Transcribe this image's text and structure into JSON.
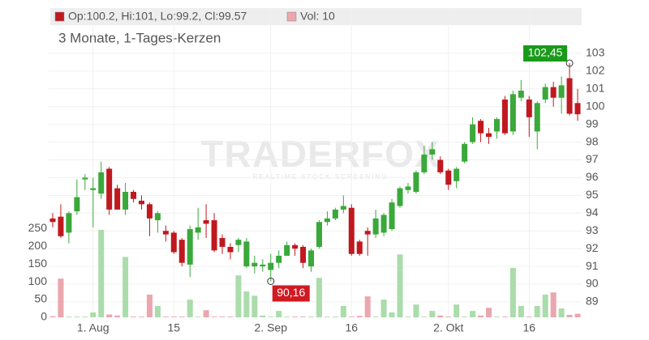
{
  "chart_data": {
    "type": "candlestick",
    "subtitle": "3 Monate, 1-Tages-Kerzen",
    "legend": {
      "ohlc": "Op:100.2, Hi:101, Lo:99.2, Cl:99.57",
      "volume": "Vol: 10"
    },
    "watermark": {
      "title": "TRADERFOX",
      "tagline": "REALTIME STOCK SCREENING"
    },
    "max_label": "102,45",
    "min_label": "90,16",
    "categories": [
      null,
      null,
      null,
      null,
      null,
      "1. Aug",
      null,
      null,
      null,
      null,
      null,
      null,
      null,
      null,
      null,
      "15",
      null,
      null,
      null,
      null,
      null,
      null,
      null,
      null,
      null,
      null,
      null,
      "2. Sep",
      null,
      null,
      null,
      null,
      null,
      null,
      null,
      null,
      null,
      "16",
      null,
      null,
      null,
      null,
      null,
      null,
      null,
      null,
      null,
      null,
      null,
      "2. Okt",
      null,
      null,
      null,
      null,
      null,
      null,
      null,
      null,
      null,
      "16",
      null,
      null,
      null,
      null,
      null,
      null
    ],
    "open": [
      93.7,
      93.8,
      92.9,
      94.1,
      95.9,
      95.3,
      95.1,
      96.5,
      95.4,
      94.2,
      95.2,
      94.7,
      94.5,
      93.6,
      93.0,
      92.9,
      92.5,
      91.1,
      92.9,
      93.6,
      93.6,
      92.6,
      92.1,
      92.2,
      91.0,
      91.0,
      91.0,
      90.8,
      91.2,
      91.6,
      92.2,
      92.1,
      91.0,
      92.1,
      93.5,
      93.7,
      94.2,
      94.3,
      92.4,
      93.0,
      92.8,
      92.9,
      93.1,
      94.4,
      95.3,
      95.2,
      96.3,
      97.3,
      97.0,
      96.4,
      95.8,
      96.9,
      98.0,
      99.2,
      98.5,
      98.6,
      100.4,
      98.6,
      100.5,
      100.4,
      98.6,
      100.4,
      101.1,
      100.5,
      101.6,
      100.2
    ],
    "high": [
      94.0,
      94.5,
      94.1,
      95.9,
      96.2,
      96.0,
      96.9,
      96.6,
      95.6,
      95.7,
      95.3,
      95.0,
      94.6,
      94.1,
      93.3,
      93.0,
      92.6,
      93.3,
      94.3,
      94.5,
      94.0,
      92.8,
      92.3,
      92.6,
      92.6,
      91.6,
      91.4,
      91.7,
      91.9,
      92.4,
      92.3,
      92.2,
      92.0,
      93.6,
      94.1,
      94.3,
      95.0,
      94.5,
      92.5,
      93.2,
      94.2,
      94.0,
      94.8,
      95.5,
      95.7,
      96.4,
      97.8,
      98.0,
      97.2,
      96.5,
      96.6,
      98.0,
      99.4,
      99.3,
      98.8,
      99.4,
      100.6,
      100.9,
      101.5,
      100.6,
      100.3,
      101.3,
      101.4,
      101.7,
      102.45,
      101
    ],
    "low": [
      93.2,
      92.6,
      92.3,
      93.9,
      95.3,
      93.2,
      94.8,
      93.9,
      94.2,
      93.9,
      94.6,
      94.2,
      92.7,
      92.9,
      92.4,
      91.7,
      91.0,
      90.4,
      92.5,
      92.6,
      91.8,
      91.7,
      91.4,
      91.8,
      90.9,
      90.6,
      90.7,
      90.16,
      90.9,
      91.6,
      91.6,
      90.9,
      90.7,
      92.0,
      93.3,
      93.6,
      94.0,
      91.6,
      91.6,
      91.6,
      92.6,
      92.7,
      93.0,
      94.3,
      95.1,
      95.1,
      96.2,
      97.0,
      96.2,
      95.3,
      95.4,
      96.8,
      97.9,
      98.0,
      97.9,
      98.2,
      98.4,
      98.4,
      100.3,
      98.3,
      97.6,
      100.2,
      100.0,
      99.6,
      99.5,
      99.2
    ],
    "close": [
      93.5,
      92.7,
      94.0,
      94.9,
      96.0,
      95.4,
      96.3,
      94.2,
      94.2,
      95.2,
      94.8,
      94.5,
      93.7,
      94.0,
      92.8,
      91.8,
      91.2,
      93.1,
      93.2,
      93.4,
      91.9,
      92.1,
      91.8,
      92.5,
      92.4,
      91.2,
      91.1,
      91.2,
      91.6,
      92.2,
      92.0,
      91.2,
      91.9,
      93.5,
      93.7,
      94.2,
      94.4,
      91.7,
      91.7,
      92.8,
      93.7,
      93.9,
      94.6,
      95.4,
      95.5,
      96.3,
      97.3,
      97.6,
      96.3,
      95.6,
      96.5,
      97.9,
      99.0,
      98.5,
      98.3,
      99.3,
      98.5,
      100.7,
      100.9,
      99.4,
      100.2,
      101.1,
      100.5,
      101.2,
      99.6,
      99.57
    ],
    "volume": [
      3,
      109,
      2,
      2,
      2,
      14,
      246,
      8,
      5,
      170,
      2,
      2,
      64,
      32,
      2,
      2,
      2,
      50,
      2,
      20,
      2,
      2,
      2,
      118,
      73,
      61,
      5,
      2,
      18,
      2,
      2,
      2,
      2,
      111,
      2,
      2,
      32,
      2,
      4,
      59,
      2,
      50,
      14,
      177,
      2,
      36,
      2,
      18,
      5,
      2,
      36,
      2,
      18,
      5,
      27,
      2,
      2,
      139,
      32,
      2,
      32,
      64,
      70,
      25,
      7,
      10
    ],
    "up_color": "#3aa83a",
    "down_color": "#c0181f",
    "volume_up_color": "#abdcab",
    "volume_down_color": "#eba6ae",
    "max_color": "#1a9a1a",
    "min_color": "#d01a22",
    "ylim": [
      88.13,
      105.55
    ],
    "yticks": [
      89,
      90,
      91,
      92,
      93,
      94,
      95,
      96,
      97,
      98,
      99,
      100,
      101,
      102,
      103
    ],
    "y2lim": [
      0,
      870
    ],
    "y2ticks": [
      0,
      50,
      100,
      150,
      200,
      250
    ],
    "grid": true
  }
}
